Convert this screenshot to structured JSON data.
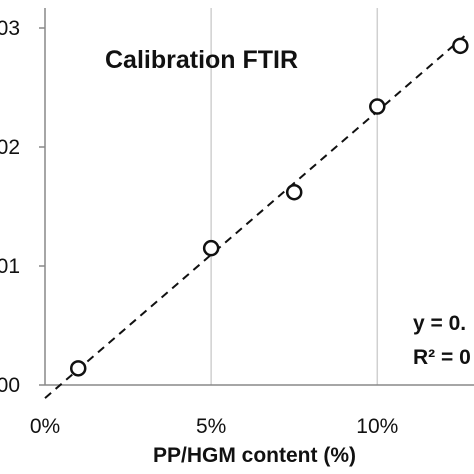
{
  "chart_data": {
    "type": "scatter",
    "title": "Calibration FTIR",
    "xlabel": "PP/HGM content  (%)",
    "ylabel": "",
    "x_ticks": [
      "0%",
      "5%",
      "10%"
    ],
    "y_ticks": [
      "00",
      "01",
      "02",
      "03"
    ],
    "xlim": [
      0,
      12.7
    ],
    "ylim": [
      0,
      3
    ],
    "grid": "vertical",
    "series": [
      {
        "points": [
          {
            "x": 1.0,
            "y": 0.14
          },
          {
            "x": 5.0,
            "y": 1.15
          },
          {
            "x": 7.5,
            "y": 1.62
          },
          {
            "x": 10.0,
            "y": 2.34
          },
          {
            "x": 12.5,
            "y": 2.85
          }
        ]
      }
    ],
    "trendline": {
      "style": "dashed",
      "from": {
        "x": 0,
        "y": -0.11
      },
      "to": {
        "x": 12.7,
        "y": 2.95
      }
    },
    "annotations": [
      "y = 0.",
      "R² = 0"
    ]
  }
}
